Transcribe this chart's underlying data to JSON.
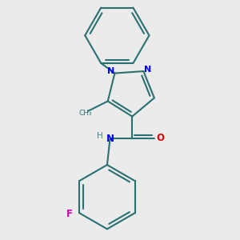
{
  "bg_color": "#ebebeb",
  "bond_color": "#2a7070",
  "N_color": "#0000ee",
  "O_color": "#dd0000",
  "F_color": "#cc00bb",
  "H_color": "#3a8888",
  "lw": 1.5,
  "figsize": [
    3.0,
    3.0
  ],
  "dpi": 100,
  "xlim": [
    -1.5,
    1.5
  ],
  "ylim": [
    -2.2,
    1.8
  ]
}
